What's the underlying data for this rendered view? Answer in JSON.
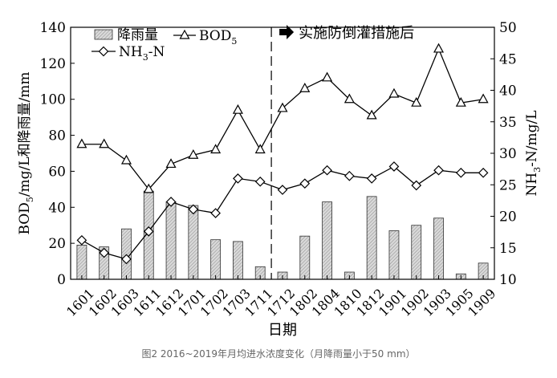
{
  "chart_data": {
    "type": "bar+line",
    "xlabel": "日期",
    "ylabel_left": "BOD5/mg/L和降雨量/mm",
    "ylabel_right": "NH3-N/mg/L",
    "categories": [
      "1601",
      "1602",
      "1603",
      "1611",
      "1612",
      "1701",
      "1702",
      "1703",
      "1711",
      "1712",
      "1802",
      "1804",
      "1810",
      "1812",
      "1901",
      "1902",
      "1903",
      "1905",
      "1909"
    ],
    "ylim_left": [
      0,
      140
    ],
    "yticks_left": [
      0,
      20,
      40,
      60,
      80,
      100,
      120,
      140
    ],
    "ylim_right": [
      10,
      50
    ],
    "yticks_right": [
      10,
      15,
      20,
      25,
      30,
      35,
      40,
      45,
      50
    ],
    "series": [
      {
        "name": "降雨量",
        "type": "bar",
        "axis": "left",
        "values": [
          19,
          18,
          28,
          49,
          43,
          41,
          22,
          21,
          7,
          4,
          24,
          43,
          4,
          46,
          27,
          30,
          34,
          3,
          9
        ]
      },
      {
        "name": "BOD5",
        "type": "line",
        "axis": "left",
        "marker": "triangle",
        "values": [
          75,
          75,
          66,
          50,
          64,
          69,
          72,
          94,
          72,
          95,
          106,
          112,
          100,
          91,
          103,
          98,
          128,
          98,
          100
        ]
      },
      {
        "name": "NH3-N",
        "type": "line",
        "axis": "right",
        "marker": "diamond",
        "values": [
          16.2,
          14.2,
          13.2,
          17.6,
          22.3,
          21.1,
          20.5,
          26.0,
          25.5,
          24.2,
          25.2,
          27.3,
          26.4,
          26.0,
          27.9,
          24.9,
          27.3,
          26.9,
          26.9
        ]
      }
    ],
    "annotation": {
      "text": "实施防倒灌措施后",
      "after_category": "1711"
    },
    "legend": "top-left"
  },
  "caption": "图2 2016~2019年月均进水浓度变化（月降雨量小于50 mm）"
}
